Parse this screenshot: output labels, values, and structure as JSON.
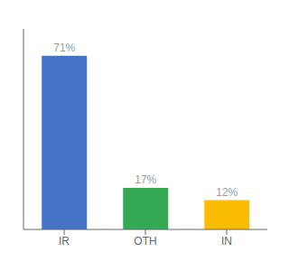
{
  "chart_data": {
    "type": "bar",
    "categories": [
      "IR",
      "OTH",
      "IN"
    ],
    "values": [
      71,
      17,
      12
    ],
    "value_labels": [
      "71%",
      "17%",
      "12%"
    ],
    "data_labels": true,
    "colors": [
      "#4472c4",
      "#34a853",
      "#fbbc04"
    ],
    "ylim": [
      0,
      82
    ],
    "tick_labels": "x",
    "grid": false
  }
}
